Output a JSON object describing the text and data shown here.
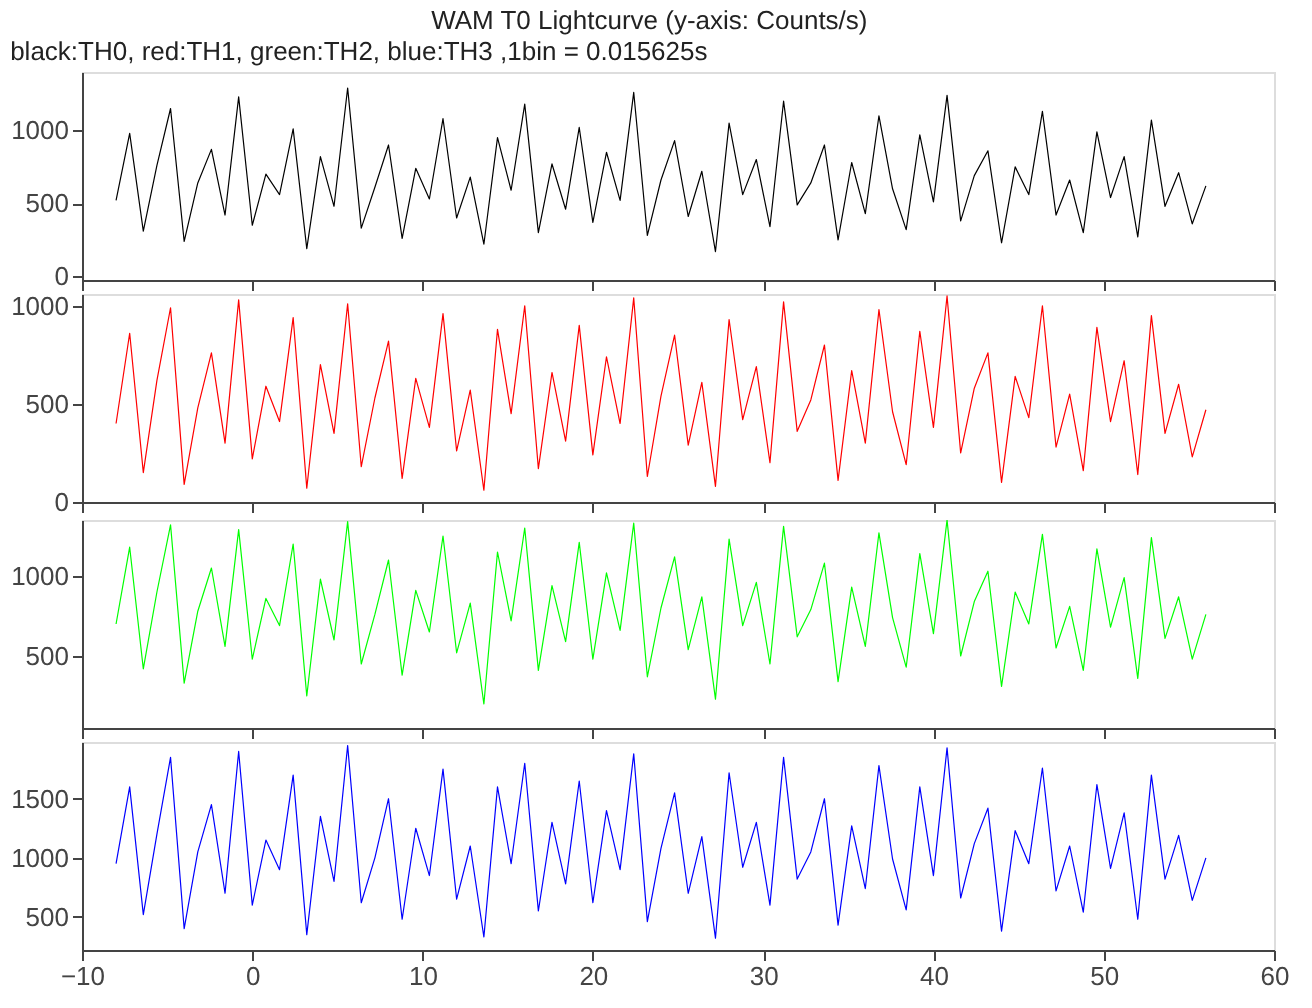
{
  "chart_data": [
    {
      "type": "line",
      "title": "WAM T0 Lightcurve (y-axis: Counts/s)",
      "subtitle": "black:TH0, red:TH1, green:TH2, blue:TH3 ,1bin = 0.015625s",
      "grid": false,
      "marker": "none",
      "line_style": "solid",
      "tick_labels": "y",
      "xlim": [
        -10,
        60
      ],
      "xticks": [
        -10,
        0,
        10,
        20,
        30,
        40,
        50,
        60
      ],
      "ylim": [
        -25,
        1400
      ],
      "yticks": [
        0,
        500,
        1000
      ],
      "x": [
        -8,
        -7.2,
        -6.4,
        -5.6,
        -4.8,
        -4,
        -3.2,
        -2.4,
        -1.6,
        -0.8,
        0,
        0.8,
        1.6,
        2.4,
        3.2,
        4,
        4.8,
        5.6,
        6.4,
        7.2,
        8,
        8.8,
        9.6,
        10.4,
        11.2,
        12,
        12.8,
        13.6,
        14.4,
        15.2,
        16,
        16.8,
        17.6,
        18.4,
        19.2,
        20,
        20.8,
        21.6,
        22.4,
        23.2,
        24,
        24.8,
        25.6,
        26.4,
        27.2,
        28,
        28.8,
        29.6,
        30.4,
        31.2,
        32,
        32.8,
        33.6,
        34.4,
        35.2,
        36,
        36.8,
        37.6,
        38.4,
        39.2,
        40,
        40.8,
        41.6,
        42.4,
        43.2,
        44,
        44.8,
        45.6,
        46.4,
        47.2,
        48,
        48.8,
        49.6,
        50.4,
        51.2,
        52,
        52.8,
        53.6,
        54.4,
        55.2,
        56
      ],
      "series": [
        {
          "color": "#000000",
          "values": [
            520,
            980,
            310,
            760,
            1150,
            240,
            640,
            870,
            420,
            1230,
            350,
            700,
            560,
            1010,
            190,
            820,
            480,
            1290,
            330,
            610,
            900,
            260,
            740,
            530,
            1080,
            400,
            680,
            220,
            950,
            590,
            1180,
            300,
            770,
            460,
            1020,
            370,
            850,
            520,
            1260,
            280,
            660,
            930,
            410,
            720,
            170,
            1050,
            560,
            800,
            340,
            1200,
            490,
            640,
            900,
            250,
            780,
            430,
            1100,
            600,
            320,
            970,
            510,
            1240,
            380,
            690,
            860,
            230,
            750,
            560,
            1130,
            420,
            660,
            300,
            990,
            540,
            820,
            270,
            1070,
            480,
            710,
            360,
            620
          ]
        }
      ]
    },
    {
      "type": "line",
      "grid": false,
      "marker": "none",
      "line_style": "solid",
      "tick_labels": "y",
      "xlim": [
        -10,
        60
      ],
      "xticks": [
        -10,
        0,
        10,
        20,
        30,
        40,
        50,
        60
      ],
      "ylim": [
        0,
        1060
      ],
      "yticks": [
        0,
        500,
        1000
      ],
      "x": [
        -8,
        -7.2,
        -6.4,
        -5.6,
        -4.8,
        -4,
        -3.2,
        -2.4,
        -1.6,
        -0.8,
        0,
        0.8,
        1.6,
        2.4,
        3.2,
        4,
        4.8,
        5.6,
        6.4,
        7.2,
        8,
        8.8,
        9.6,
        10.4,
        11.2,
        12,
        12.8,
        13.6,
        14.4,
        15.2,
        16,
        16.8,
        17.6,
        18.4,
        19.2,
        20,
        20.8,
        21.6,
        22.4,
        23.2,
        24,
        24.8,
        25.6,
        26.4,
        27.2,
        28,
        28.8,
        29.6,
        30.4,
        31.2,
        32,
        32.8,
        33.6,
        34.4,
        35.2,
        36,
        36.8,
        37.6,
        38.4,
        39.2,
        40,
        40.8,
        41.6,
        42.4,
        43.2,
        44,
        44.8,
        45.6,
        46.4,
        47.2,
        48,
        48.8,
        49.6,
        50.4,
        51.2,
        52,
        52.8,
        53.6,
        54.4,
        55.2,
        56
      ],
      "series": [
        {
          "color": "#ff0000",
          "values": [
            400,
            860,
            150,
            620,
            990,
            90,
            480,
            760,
            300,
            1030,
            220,
            590,
            410,
            940,
            70,
            700,
            350,
            1010,
            180,
            530,
            820,
            120,
            630,
            380,
            960,
            260,
            570,
            60,
            880,
            450,
            1000,
            170,
            660,
            310,
            900,
            240,
            740,
            400,
            1040,
            130,
            540,
            850,
            290,
            610,
            80,
            930,
            420,
            690,
            200,
            1020,
            360,
            520,
            800,
            110,
            670,
            300,
            980,
            460,
            190,
            870,
            380,
            1050,
            250,
            580,
            760,
            100,
            640,
            430,
            1000,
            280,
            550,
            160,
            890,
            410,
            720,
            140,
            950,
            350,
            600,
            230,
            470
          ]
        }
      ]
    },
    {
      "type": "line",
      "grid": false,
      "marker": "none",
      "line_style": "solid",
      "tick_labels": "y",
      "xlim": [
        -10,
        60
      ],
      "xticks": [
        -10,
        0,
        10,
        20,
        30,
        40,
        50,
        60
      ],
      "ylim": [
        50,
        1350
      ],
      "yticks": [
        500,
        1000
      ],
      "x": [
        -8,
        -7.2,
        -6.4,
        -5.6,
        -4.8,
        -4,
        -3.2,
        -2.4,
        -1.6,
        -0.8,
        0,
        0.8,
        1.6,
        2.4,
        3.2,
        4,
        4.8,
        5.6,
        6.4,
        7.2,
        8,
        8.8,
        9.6,
        10.4,
        11.2,
        12,
        12.8,
        13.6,
        14.4,
        15.2,
        16,
        16.8,
        17.6,
        18.4,
        19.2,
        20,
        20.8,
        21.6,
        22.4,
        23.2,
        24,
        24.8,
        25.6,
        26.4,
        27.2,
        28,
        28.8,
        29.6,
        30.4,
        31.2,
        32,
        32.8,
        33.6,
        34.4,
        35.2,
        36,
        36.8,
        37.6,
        38.4,
        39.2,
        40,
        40.8,
        41.6,
        42.4,
        43.2,
        44,
        44.8,
        45.6,
        46.4,
        47.2,
        48,
        48.8,
        49.6,
        50.4,
        51.2,
        52,
        52.8,
        53.6,
        54.4,
        55.2,
        56
      ],
      "series": [
        {
          "color": "#00ff00",
          "values": [
            700,
            1180,
            420,
            900,
            1320,
            330,
            780,
            1050,
            560,
            1290,
            480,
            860,
            690,
            1200,
            250,
            980,
            600,
            1340,
            450,
            760,
            1100,
            380,
            910,
            650,
            1250,
            520,
            830,
            200,
            1150,
            720,
            1300,
            410,
            940,
            590,
            1210,
            480,
            1020,
            660,
            1330,
            370,
            800,
            1120,
            540,
            870,
            230,
            1230,
            690,
            960,
            450,
            1310,
            620,
            790,
            1080,
            340,
            930,
            560,
            1270,
            740,
            430,
            1140,
            640,
            1350,
            500,
            840,
            1030,
            310,
            900,
            700,
            1260,
            550,
            810,
            410,
            1170,
            680,
            990,
            360,
            1240,
            610,
            870,
            480,
            760
          ]
        }
      ]
    },
    {
      "type": "line",
      "grid": false,
      "marker": "none",
      "line_style": "solid",
      "xlim": [
        -10,
        60
      ],
      "xticks": [
        -10,
        0,
        10,
        20,
        30,
        40,
        50,
        60
      ],
      "ylim": [
        220,
        1980
      ],
      "yticks": [
        500,
        1000,
        1500
      ],
      "x": [
        -8,
        -7.2,
        -6.4,
        -5.6,
        -4.8,
        -4,
        -3.2,
        -2.4,
        -1.6,
        -0.8,
        0,
        0.8,
        1.6,
        2.4,
        3.2,
        4,
        4.8,
        5.6,
        6.4,
        7.2,
        8,
        8.8,
        9.6,
        10.4,
        11.2,
        12,
        12.8,
        13.6,
        14.4,
        15.2,
        16,
        16.8,
        17.6,
        18.4,
        19.2,
        20,
        20.8,
        21.6,
        22.4,
        23.2,
        24,
        24.8,
        25.6,
        26.4,
        27.2,
        28,
        28.8,
        29.6,
        30.4,
        31.2,
        32,
        32.8,
        33.6,
        34.4,
        35.2,
        36,
        36.8,
        37.6,
        38.4,
        39.2,
        40,
        40.8,
        41.6,
        42.4,
        43.2,
        44,
        44.8,
        45.6,
        46.4,
        47.2,
        48,
        48.8,
        49.6,
        50.4,
        51.2,
        52,
        52.8,
        53.6,
        54.4,
        55.2,
        56
      ],
      "series": [
        {
          "color": "#0000ff",
          "values": [
            950,
            1600,
            520,
            1200,
            1850,
            400,
            1050,
            1450,
            700,
            1900,
            600,
            1150,
            900,
            1700,
            350,
            1350,
            800,
            1950,
            620,
            1000,
            1500,
            480,
            1250,
            850,
            1750,
            650,
            1100,
            330,
            1600,
            950,
            1800,
            550,
            1300,
            780,
            1650,
            620,
            1400,
            900,
            1880,
            460,
            1080,
            1550,
            700,
            1180,
            320,
            1720,
            920,
            1300,
            600,
            1850,
            820,
            1050,
            1500,
            430,
            1270,
            740,
            1780,
            990,
            560,
            1600,
            850,
            1930,
            660,
            1120,
            1420,
            380,
            1230,
            950,
            1760,
            720,
            1100,
            540,
            1620,
            910,
            1380,
            480,
            1700,
            820,
            1190,
            640,
            1000
          ]
        }
      ]
    }
  ]
}
